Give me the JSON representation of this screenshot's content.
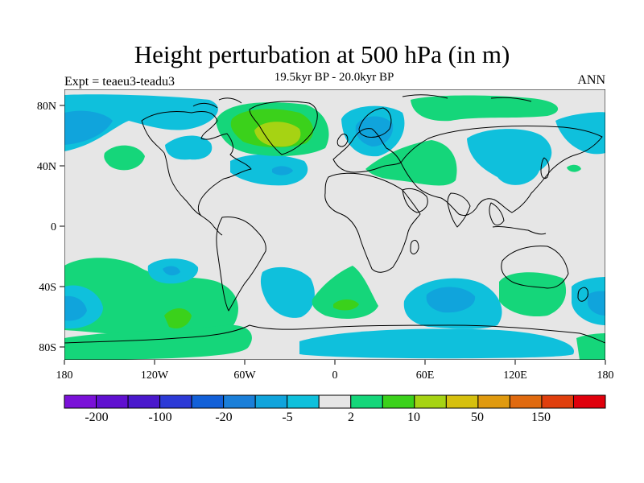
{
  "plot": {
    "title": "Height perturbation at 500 hPa (in m)",
    "subtitle": "19.5kyr BP - 20.0kyr BP",
    "left_label": "Expt = teaeu3-teadu3",
    "right_label": "ANN"
  },
  "axes": {
    "lat_ticks": [
      "80N",
      "40N",
      "0",
      "40S",
      "80S"
    ],
    "lon_ticks": [
      "180",
      "120W",
      "60W",
      "0",
      "60E",
      "120E",
      "180"
    ]
  },
  "colorbar": {
    "colors": [
      "#7a11d8",
      "#6010d0",
      "#4a18cc",
      "#2c3ad6",
      "#1260d8",
      "#1a7fd9",
      "#10a4dc",
      "#0fc0dc",
      "#e6e6e6",
      "#15d67a",
      "#3bd11b",
      "#a6d313",
      "#d6c00e",
      "#e09a0f",
      "#e06a0f",
      "#e03f0d",
      "#e0000c"
    ],
    "labels": [
      "-200",
      "-100",
      "-20",
      "-5",
      "2",
      "10",
      "50",
      "150"
    ]
  },
  "map": {
    "background": "#e6e6e6",
    "fill_colors": {
      "light_blue": "#0fc0dc",
      "mid_blue": "#10a4dc",
      "green": "#15d67a",
      "bright_green": "#3bd11b",
      "yellow_green": "#a6d313"
    }
  }
}
